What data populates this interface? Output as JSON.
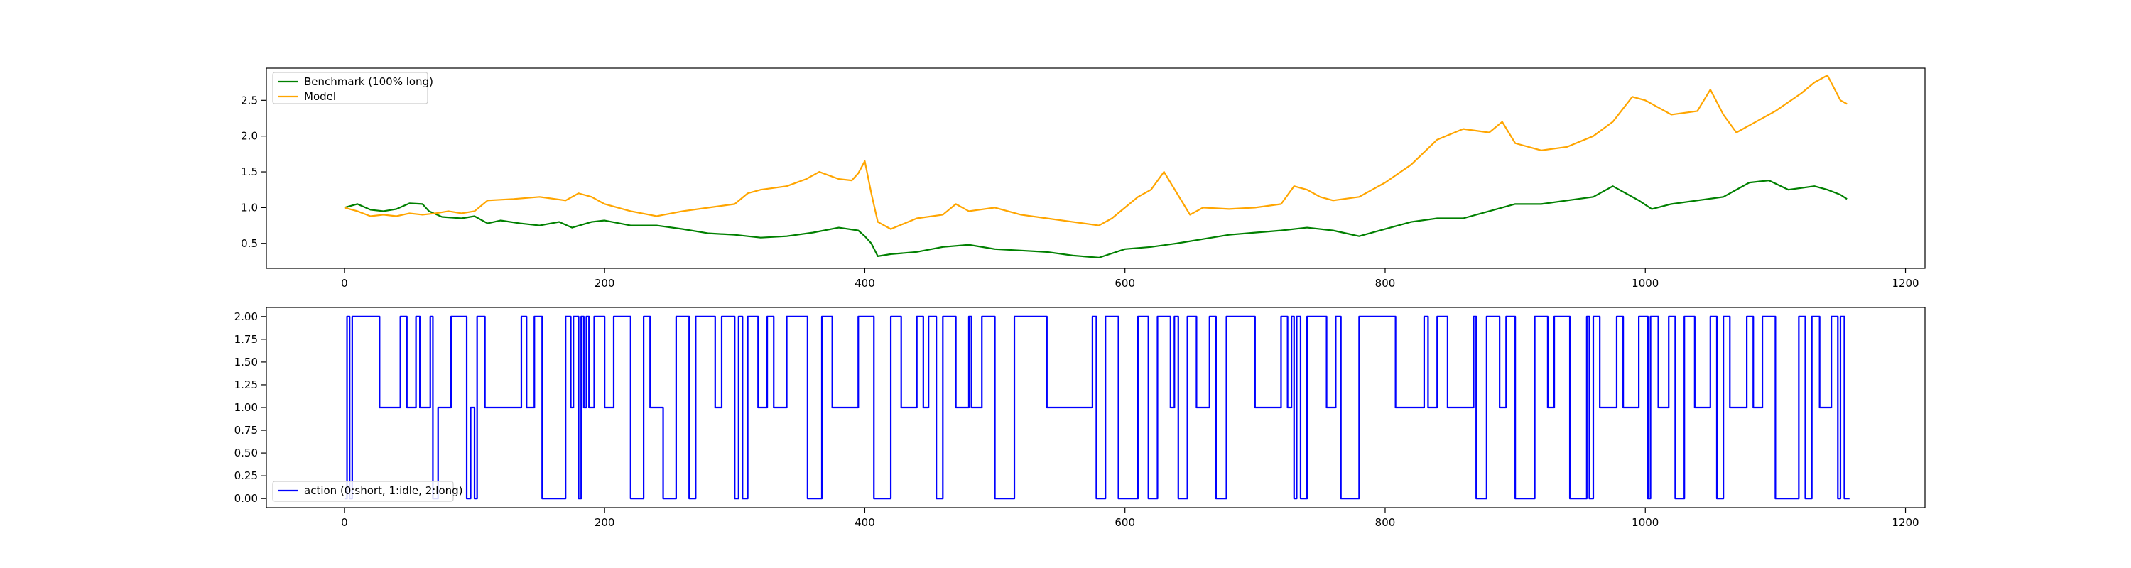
{
  "chart_data": [
    {
      "type": "line",
      "title": "",
      "xlabel": "",
      "ylabel": "",
      "xlim": [
        -60,
        1215
      ],
      "ylim": [
        0.15,
        2.95
      ],
      "xticks": [
        0,
        200,
        400,
        600,
        800,
        1000,
        1200
      ],
      "yticks": [
        0.5,
        1.0,
        1.5,
        2.0,
        2.5
      ],
      "ytick_labels": [
        "0.5",
        "1.0",
        "1.5",
        "2.0",
        "2.5"
      ],
      "grid": false,
      "legend_position": "top-left",
      "series": [
        {
          "name": "Benchmark (100% long)",
          "color": "#008000",
          "x": [
            0,
            10,
            20,
            30,
            40,
            50,
            60,
            65,
            75,
            90,
            100,
            110,
            120,
            135,
            150,
            165,
            175,
            190,
            200,
            220,
            240,
            260,
            280,
            300,
            320,
            340,
            360,
            380,
            395,
            400,
            405,
            410,
            420,
            440,
            460,
            480,
            500,
            520,
            540,
            560,
            580,
            600,
            620,
            640,
            660,
            680,
            700,
            720,
            740,
            760,
            780,
            800,
            820,
            840,
            860,
            880,
            900,
            920,
            940,
            960,
            975,
            985,
            995,
            1005,
            1020,
            1040,
            1060,
            1080,
            1095,
            1110,
            1130,
            1140,
            1150,
            1155
          ],
          "values": [
            1.0,
            1.05,
            0.97,
            0.95,
            0.98,
            1.06,
            1.05,
            0.95,
            0.87,
            0.85,
            0.88,
            0.78,
            0.82,
            0.78,
            0.75,
            0.8,
            0.72,
            0.8,
            0.82,
            0.75,
            0.75,
            0.7,
            0.64,
            0.62,
            0.58,
            0.6,
            0.65,
            0.72,
            0.68,
            0.6,
            0.5,
            0.32,
            0.35,
            0.38,
            0.45,
            0.48,
            0.42,
            0.4,
            0.38,
            0.33,
            0.3,
            0.42,
            0.45,
            0.5,
            0.56,
            0.62,
            0.65,
            0.68,
            0.72,
            0.68,
            0.6,
            0.7,
            0.8,
            0.85,
            0.85,
            0.95,
            1.05,
            1.05,
            1.1,
            1.15,
            1.3,
            1.2,
            1.1,
            0.98,
            1.05,
            1.1,
            1.15,
            1.35,
            1.38,
            1.25,
            1.3,
            1.25,
            1.18,
            1.12
          ]
        },
        {
          "name": "Model",
          "color": "#FFA500",
          "x": [
            0,
            10,
            20,
            30,
            40,
            50,
            60,
            70,
            80,
            90,
            100,
            110,
            130,
            150,
            170,
            180,
            190,
            200,
            220,
            240,
            260,
            280,
            300,
            310,
            320,
            340,
            355,
            365,
            380,
            390,
            395,
            400,
            405,
            410,
            420,
            440,
            460,
            470,
            480,
            500,
            520,
            540,
            560,
            580,
            590,
            600,
            610,
            620,
            630,
            640,
            650,
            660,
            680,
            700,
            720,
            730,
            740,
            750,
            760,
            780,
            800,
            820,
            840,
            860,
            880,
            890,
            900,
            920,
            940,
            960,
            975,
            990,
            1000,
            1020,
            1040,
            1050,
            1060,
            1070,
            1080,
            1100,
            1120,
            1130,
            1140,
            1150,
            1155
          ],
          "values": [
            1.0,
            0.95,
            0.88,
            0.9,
            0.88,
            0.92,
            0.9,
            0.92,
            0.95,
            0.92,
            0.95,
            1.1,
            1.12,
            1.15,
            1.1,
            1.2,
            1.15,
            1.05,
            0.95,
            0.88,
            0.95,
            1.0,
            1.05,
            1.2,
            1.25,
            1.3,
            1.4,
            1.5,
            1.4,
            1.38,
            1.48,
            1.65,
            1.2,
            0.8,
            0.7,
            0.85,
            0.9,
            1.05,
            0.95,
            1.0,
            0.9,
            0.85,
            0.8,
            0.75,
            0.85,
            1.0,
            1.15,
            1.25,
            1.5,
            1.2,
            0.9,
            1.0,
            0.98,
            1.0,
            1.05,
            1.3,
            1.25,
            1.15,
            1.1,
            1.15,
            1.35,
            1.6,
            1.95,
            2.1,
            2.05,
            2.2,
            1.9,
            1.8,
            1.85,
            2.0,
            2.2,
            2.55,
            2.5,
            2.3,
            2.35,
            2.65,
            2.3,
            2.05,
            2.15,
            2.35,
            2.6,
            2.75,
            2.85,
            2.5,
            2.45
          ]
        }
      ]
    },
    {
      "type": "line",
      "title": "",
      "xlabel": "",
      "ylabel": "",
      "xlim": [
        -60,
        1215
      ],
      "ylim": [
        -0.1,
        2.1
      ],
      "xticks": [
        0,
        200,
        400,
        600,
        800,
        1000,
        1200
      ],
      "yticks": [
        0.0,
        0.25,
        0.5,
        0.75,
        1.0,
        1.25,
        1.5,
        1.75,
        2.0
      ],
      "ytick_labels": [
        "0.00",
        "0.25",
        "0.50",
        "0.75",
        "1.00",
        "1.25",
        "1.50",
        "1.75",
        "2.00"
      ],
      "grid": false,
      "legend_position": "bottom-left",
      "step": true,
      "series": [
        {
          "name": "action (0:short, 1:idle, 2:long)",
          "color": "#0000FF",
          "x": [
            0,
            2,
            4,
            6,
            27,
            43,
            48,
            55,
            58,
            66,
            68,
            72,
            82,
            94,
            97,
            100,
            102,
            108,
            136,
            140,
            146,
            152,
            170,
            174,
            176,
            180,
            182,
            184,
            186,
            188,
            192,
            200,
            207,
            220,
            230,
            235,
            245,
            255,
            265,
            270,
            285,
            290,
            300,
            303,
            306,
            310,
            318,
            325,
            330,
            340,
            356,
            367,
            375,
            395,
            407,
            420,
            428,
            440,
            445,
            449,
            455,
            460,
            470,
            480,
            482,
            490,
            500,
            515,
            540,
            575,
            578,
            585,
            595,
            610,
            618,
            625,
            635,
            638,
            641,
            648,
            655,
            665,
            670,
            678,
            700,
            720,
            725,
            728,
            730,
            732,
            735,
            740,
            755,
            762,
            766,
            780,
            808,
            830,
            833,
            840,
            848,
            868,
            870,
            878,
            888,
            893,
            900,
            915,
            925,
            930,
            942,
            955,
            957,
            960,
            965,
            978,
            983,
            995,
            1002,
            1004,
            1010,
            1018,
            1023,
            1030,
            1038,
            1050,
            1055,
            1060,
            1065,
            1078,
            1083,
            1090,
            1100,
            1118,
            1123,
            1128,
            1134,
            1143,
            1148,
            1150,
            1153,
            1157
          ],
          "values": [
            0,
            2,
            0,
            2,
            1,
            2,
            1,
            2,
            1,
            2,
            0,
            1,
            2,
            0,
            1,
            0,
            2,
            1,
            2,
            1,
            2,
            0,
            2,
            1,
            2,
            0,
            2,
            1,
            2,
            1,
            2,
            1,
            2,
            0,
            2,
            1,
            0,
            2,
            0,
            2,
            1,
            2,
            0,
            2,
            0,
            2,
            1,
            2,
            1,
            2,
            0,
            2,
            1,
            2,
            0,
            2,
            1,
            2,
            1,
            2,
            0,
            2,
            1,
            2,
            1,
            2,
            0,
            2,
            1,
            2,
            0,
            2,
            0,
            2,
            0,
            2,
            1,
            2,
            0,
            2,
            1,
            2,
            0,
            2,
            1,
            2,
            1,
            2,
            0,
            2,
            0,
            2,
            1,
            2,
            0,
            2,
            1,
            2,
            1,
            2,
            1,
            2,
            0,
            2,
            1,
            2,
            0,
            2,
            1,
            2,
            0,
            2,
            0,
            2,
            1,
            2,
            1,
            2,
            0,
            2,
            1,
            2,
            0,
            2,
            1,
            2,
            0,
            2,
            1,
            2,
            1,
            2,
            0,
            2,
            0,
            2,
            1,
            2,
            0,
            2,
            0,
            0
          ]
        }
      ]
    }
  ]
}
